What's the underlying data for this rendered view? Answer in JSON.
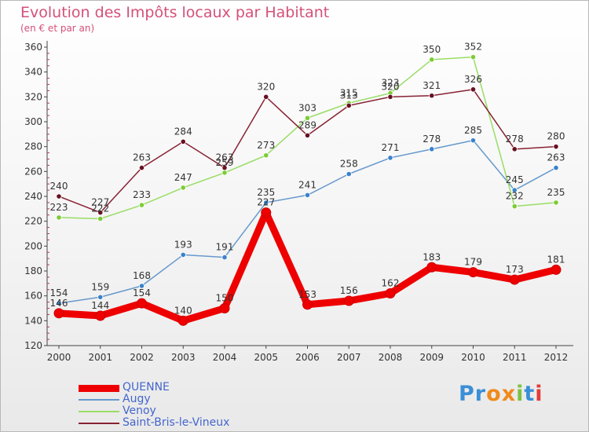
{
  "title": "Evolution des Impôts locaux par Habitant",
  "subtitle": "(en € et par an)",
  "logo": {
    "text": "Proxiti",
    "colors": [
      "#3a8fd6",
      "#3a8fd6",
      "#f08a1c",
      "#f08a1c",
      "#7cc242",
      "#3a8fd6",
      "#e33b3b"
    ]
  },
  "chart_data": {
    "type": "line",
    "title": "Evolution des Impôts locaux par Habitant",
    "subtitle": "(en € et par an)",
    "categories": [
      "2000",
      "2001",
      "2002",
      "2003",
      "2004",
      "2005",
      "2006",
      "2007",
      "2008",
      "2009",
      "2010",
      "2011",
      "2012"
    ],
    "ylim": [
      120,
      360
    ],
    "yticks": [
      120,
      140,
      160,
      180,
      200,
      220,
      240,
      260,
      280,
      300,
      320,
      340,
      360
    ],
    "grid": false,
    "legend": "bottom-left",
    "series": [
      {
        "name": "QUENNE",
        "color": "#ee0000",
        "marker": "#ee0000",
        "bold": true,
        "values": [
          146,
          144,
          154,
          140,
          150,
          227,
          153,
          156,
          162,
          183,
          179,
          173,
          181
        ]
      },
      {
        "name": "Augy",
        "color": "#6699cc",
        "marker": "#3a82cc",
        "bold": false,
        "values": [
          154,
          159,
          168,
          193,
          191,
          235,
          241,
          258,
          271,
          278,
          285,
          245,
          263
        ]
      },
      {
        "name": "Venoy",
        "color": "#99dd66",
        "marker": "#7ccc33",
        "bold": false,
        "values": [
          223,
          222,
          233,
          247,
          259,
          273,
          303,
          315,
          323,
          350,
          352,
          232,
          235
        ]
      },
      {
        "name": "Saint-Bris-le-Vineux",
        "color": "#882233",
        "marker": "#661122",
        "bold": false,
        "values": [
          240,
          227,
          263,
          284,
          263,
          320,
          289,
          313,
          320,
          321,
          326,
          278,
          280
        ]
      }
    ]
  }
}
